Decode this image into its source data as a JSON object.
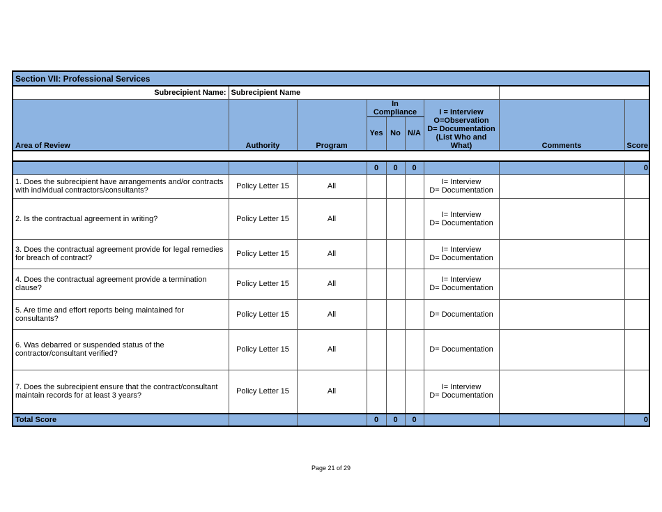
{
  "section_title": "Section VII: Professional Services",
  "subrecipient": {
    "label": "Subrecipient Name:",
    "value": "Subrecipient Name"
  },
  "headers": {
    "area": "Area of Review",
    "authority": "Authority",
    "program": "Program",
    "in_compliance": "In Compliance",
    "yes": "Yes",
    "no": "No",
    "na": "N/A",
    "method_lines": [
      "I = Interview",
      "O=Observation",
      "D= Documentation",
      "(List Who and What)"
    ],
    "comments": "Comments",
    "score": "Score"
  },
  "totals_top": {
    "yes": "0",
    "no": "0",
    "na": "0",
    "score": "0"
  },
  "rows": [
    {
      "question": "1. Does the subrecipient have arrangements and/or contracts with individual contractors/consultants?",
      "authority": "Policy Letter 15",
      "program": "All",
      "method": [
        "I= Interview",
        "D= Documentation"
      ]
    },
    {
      "question": "2. Is the contractual agreement in writing?",
      "authority": "Policy Letter 15",
      "program": "All",
      "method": [
        "I= Interview",
        "D= Documentation"
      ]
    },
    {
      "question": "3. Does the contractual agreement provide for legal remedies for breach of contract?",
      "authority": "Policy Letter 15",
      "program": "All",
      "method": [
        "I= Interview",
        "D= Documentation"
      ]
    },
    {
      "question": "4. Does the contractual agreement provide a termination clause?",
      "authority": "Policy Letter 15",
      "program": "All",
      "method": [
        "I= Interview",
        "D= Documentation"
      ]
    },
    {
      "question": "5. Are time and effort reports being maintained for consultants?",
      "authority": "Policy Letter 15",
      "program": "All",
      "method": [
        "D= Documentation"
      ]
    },
    {
      "question": "6. Was debarred or suspended status of the contractor/consultant verified?",
      "authority": "Policy Letter 15",
      "program": "All",
      "method": [
        "D= Documentation"
      ]
    },
    {
      "question": "7. Does the subrecipient ensure that the contract/consultant maintain records for at least 3 years?",
      "authority": "Policy Letter 15",
      "program": "All",
      "method": [
        "I= Interview",
        "D= Documentation"
      ]
    }
  ],
  "total_score": {
    "label": "Total Score",
    "yes": "0",
    "no": "0",
    "na": "0",
    "score": "0"
  },
  "footer": "Page 21 of 29",
  "colors": {
    "header_blue": "#8db4e2"
  }
}
